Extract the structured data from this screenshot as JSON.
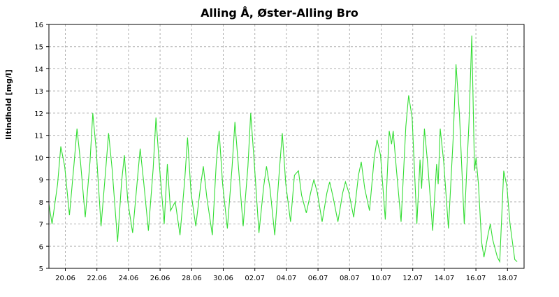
{
  "chart_data": {
    "type": "line",
    "title": "Alling Å, Øster-Alling Bro",
    "xlabel": "",
    "ylabel": "Iltindhold [mg/l]",
    "ylim": [
      5,
      16
    ],
    "yticks": [
      5,
      6,
      7,
      8,
      9,
      10,
      11,
      12,
      13,
      14,
      15,
      16
    ],
    "xticks": [
      "20.06",
      "22.06",
      "24.06",
      "26.06",
      "28.06",
      "30.06",
      "02.07",
      "04.07",
      "06.07",
      "08.07",
      "10.07",
      "12.07",
      "14.07",
      "16.07",
      "18.07"
    ],
    "grid": true,
    "line_color": "#33dd33",
    "series": [
      {
        "x_unit": "days since 19.06 00:00",
        "points": [
          [
            0.0,
            7.9
          ],
          [
            0.2,
            7.0
          ],
          [
            0.55,
            8.8
          ],
          [
            0.75,
            10.5
          ],
          [
            1.0,
            9.6
          ],
          [
            1.3,
            7.4
          ],
          [
            1.6,
            9.8
          ],
          [
            1.78,
            11.3
          ],
          [
            2.0,
            9.8
          ],
          [
            2.3,
            7.3
          ],
          [
            2.6,
            9.8
          ],
          [
            2.78,
            12.0
          ],
          [
            3.0,
            10.3
          ],
          [
            3.3,
            6.9
          ],
          [
            3.6,
            9.5
          ],
          [
            3.78,
            11.1
          ],
          [
            4.0,
            9.5
          ],
          [
            4.35,
            6.2
          ],
          [
            4.6,
            8.9
          ],
          [
            4.78,
            10.1
          ],
          [
            5.0,
            8.0
          ],
          [
            5.3,
            6.6
          ],
          [
            5.6,
            9.0
          ],
          [
            5.78,
            10.4
          ],
          [
            6.0,
            8.9
          ],
          [
            6.3,
            6.7
          ],
          [
            6.6,
            9.5
          ],
          [
            6.78,
            11.8
          ],
          [
            7.0,
            9.6
          ],
          [
            7.3,
            7.0
          ],
          [
            7.5,
            9.7
          ],
          [
            7.7,
            7.6
          ],
          [
            8.0,
            8.0
          ],
          [
            8.3,
            6.5
          ],
          [
            8.6,
            9.0
          ],
          [
            8.78,
            10.9
          ],
          [
            9.0,
            8.4
          ],
          [
            9.3,
            6.9
          ],
          [
            9.6,
            8.7
          ],
          [
            9.78,
            9.6
          ],
          [
            10.0,
            8.2
          ],
          [
            10.35,
            6.5
          ],
          [
            10.6,
            9.8
          ],
          [
            10.78,
            11.2
          ],
          [
            11.0,
            8.8
          ],
          [
            11.3,
            6.8
          ],
          [
            11.6,
            9.6
          ],
          [
            11.78,
            11.6
          ],
          [
            12.0,
            9.6
          ],
          [
            12.3,
            6.9
          ],
          [
            12.6,
            9.6
          ],
          [
            12.78,
            12.0
          ],
          [
            13.0,
            9.8
          ],
          [
            13.3,
            6.6
          ],
          [
            13.6,
            8.7
          ],
          [
            13.78,
            9.6
          ],
          [
            14.0,
            8.6
          ],
          [
            14.3,
            6.5
          ],
          [
            14.6,
            9.5
          ],
          [
            14.78,
            11.1
          ],
          [
            15.0,
            8.8
          ],
          [
            15.3,
            7.1
          ],
          [
            15.55,
            9.2
          ],
          [
            15.8,
            9.4
          ],
          [
            16.0,
            8.3
          ],
          [
            16.3,
            7.5
          ],
          [
            16.6,
            8.5
          ],
          [
            16.78,
            9.0
          ],
          [
            17.0,
            8.4
          ],
          [
            17.3,
            7.1
          ],
          [
            17.6,
            8.4
          ],
          [
            17.78,
            8.9
          ],
          [
            18.0,
            8.2
          ],
          [
            18.3,
            7.1
          ],
          [
            18.6,
            8.4
          ],
          [
            18.78,
            8.9
          ],
          [
            19.0,
            8.4
          ],
          [
            19.3,
            7.3
          ],
          [
            19.6,
            9.2
          ],
          [
            19.78,
            9.8
          ],
          [
            20.0,
            8.6
          ],
          [
            20.3,
            7.6
          ],
          [
            20.6,
            10.0
          ],
          [
            20.78,
            10.8
          ],
          [
            21.0,
            10.1
          ],
          [
            21.3,
            7.2
          ],
          [
            21.55,
            11.2
          ],
          [
            21.7,
            10.6
          ],
          [
            21.8,
            11.2
          ],
          [
            22.0,
            9.5
          ],
          [
            22.3,
            7.1
          ],
          [
            22.6,
            11.4
          ],
          [
            22.78,
            12.8
          ],
          [
            23.0,
            11.8
          ],
          [
            23.3,
            7.0
          ],
          [
            23.5,
            9.9
          ],
          [
            23.6,
            8.6
          ],
          [
            23.78,
            11.3
          ],
          [
            24.0,
            9.6
          ],
          [
            24.3,
            6.7
          ],
          [
            24.55,
            9.7
          ],
          [
            24.65,
            8.8
          ],
          [
            24.78,
            11.3
          ],
          [
            25.0,
            9.8
          ],
          [
            25.3,
            6.8
          ],
          [
            25.6,
            10.9
          ],
          [
            25.78,
            14.2
          ],
          [
            26.0,
            11.9
          ],
          [
            26.3,
            7.0
          ],
          [
            26.6,
            11.6
          ],
          [
            26.78,
            15.5
          ],
          [
            26.95,
            9.4
          ],
          [
            27.05,
            10.0
          ],
          [
            27.2,
            8.8
          ],
          [
            27.4,
            6.2
          ],
          [
            27.55,
            5.5
          ],
          [
            27.8,
            6.5
          ],
          [
            27.95,
            7.0
          ],
          [
            28.1,
            6.3
          ],
          [
            28.4,
            5.5
          ],
          [
            28.55,
            5.3
          ],
          [
            28.8,
            9.4
          ],
          [
            29.0,
            8.7
          ],
          [
            29.2,
            7.0
          ],
          [
            29.5,
            5.4
          ],
          [
            29.65,
            5.3
          ]
        ]
      }
    ]
  }
}
